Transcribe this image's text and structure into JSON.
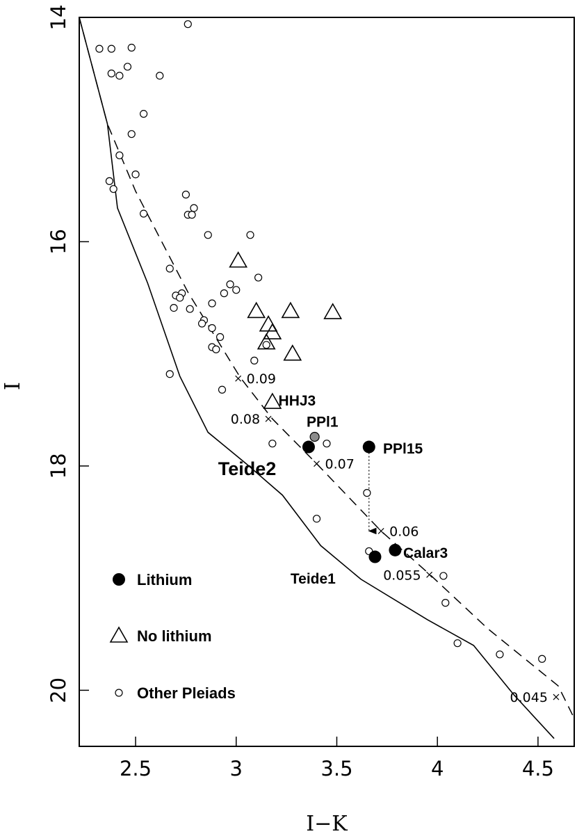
{
  "chart_data": {
    "type": "scatter",
    "xlabel": "I−K",
    "ylabel": "I",
    "xlim": [
      2.22,
      4.68
    ],
    "ylim": [
      20.5,
      14.0
    ],
    "y_inverted": true,
    "grid": false,
    "x_ticks": [
      {
        "value": 2.5,
        "label": "2.5"
      },
      {
        "value": 3.0,
        "label": "3"
      },
      {
        "value": 3.5,
        "label": "3.5"
      },
      {
        "value": 4.0,
        "label": "4"
      },
      {
        "value": 4.5,
        "label": "4.5"
      }
    ],
    "y_ticks": [
      {
        "value": 14,
        "label": "14"
      },
      {
        "value": 16,
        "label": "16"
      },
      {
        "value": 18,
        "label": "18"
      },
      {
        "value": 20,
        "label": "20"
      }
    ],
    "legend": {
      "placement": "bottom-left",
      "entries": [
        {
          "marker": "filled-circle",
          "label": "Lithium"
        },
        {
          "marker": "open-triangle",
          "label": "No lithium"
        },
        {
          "marker": "open-circle",
          "label": "Other Pleiads"
        }
      ]
    },
    "series": [
      {
        "name": "Other Pleiads",
        "marker": "open-circle",
        "points": [
          [
            2.32,
            14.28
          ],
          [
            2.38,
            14.28
          ],
          [
            2.48,
            14.27
          ],
          [
            2.38,
            14.5
          ],
          [
            2.42,
            14.52
          ],
          [
            2.46,
            14.44
          ],
          [
            2.62,
            14.52
          ],
          [
            2.76,
            14.06
          ],
          [
            2.54,
            14.86
          ],
          [
            2.48,
            15.04
          ],
          [
            2.42,
            15.23
          ],
          [
            2.5,
            15.4
          ],
          [
            2.37,
            15.46
          ],
          [
            2.39,
            15.53
          ],
          [
            2.54,
            15.75
          ],
          [
            2.75,
            15.58
          ],
          [
            2.76,
            15.76
          ],
          [
            2.78,
            15.76
          ],
          [
            2.79,
            15.7
          ],
          [
            2.86,
            15.94
          ],
          [
            3.07,
            15.94
          ],
          [
            2.67,
            16.24
          ],
          [
            3.11,
            16.32
          ],
          [
            2.97,
            16.38
          ],
          [
            3.0,
            16.43
          ],
          [
            2.73,
            16.46
          ],
          [
            2.7,
            16.48
          ],
          [
            2.72,
            16.5
          ],
          [
            2.94,
            16.46
          ],
          [
            2.88,
            16.55
          ],
          [
            2.69,
            16.59
          ],
          [
            2.77,
            16.6
          ],
          [
            2.84,
            16.7
          ],
          [
            2.83,
            16.73
          ],
          [
            2.88,
            16.77
          ],
          [
            2.92,
            16.85
          ],
          [
            2.88,
            16.94
          ],
          [
            2.9,
            16.96
          ],
          [
            3.15,
            16.92
          ],
          [
            3.09,
            17.06
          ],
          [
            2.67,
            17.18
          ],
          [
            2.93,
            17.32
          ],
          [
            3.18,
            17.8
          ],
          [
            3.45,
            17.8
          ],
          [
            3.65,
            18.24
          ],
          [
            3.4,
            18.47
          ],
          [
            3.66,
            18.76
          ],
          [
            4.03,
            18.98
          ],
          [
            4.04,
            19.22
          ],
          [
            4.1,
            19.58
          ],
          [
            4.31,
            19.68
          ],
          [
            4.52,
            19.72
          ]
        ]
      },
      {
        "name": "No lithium",
        "marker": "open-triangle",
        "points": [
          [
            3.01,
            16.17
          ],
          [
            3.1,
            16.62
          ],
          [
            3.27,
            16.62
          ],
          [
            3.48,
            16.63
          ],
          [
            3.16,
            16.74
          ],
          [
            3.18,
            16.81
          ],
          [
            3.15,
            16.9
          ],
          [
            3.28,
            17.0
          ],
          [
            3.18,
            17.43
          ]
        ]
      },
      {
        "name": "Lithium",
        "marker": "filled-circle",
        "points": [
          [
            3.36,
            17.83
          ],
          [
            3.66,
            17.83
          ],
          [
            3.69,
            18.81
          ],
          [
            3.79,
            18.75
          ]
        ]
      },
      {
        "name": "PPl1",
        "marker": "gray-circle",
        "points": [
          [
            3.39,
            17.74
          ]
        ]
      }
    ],
    "object_labels": [
      {
        "text": "HHJ3",
        "x": 3.21,
        "y": 17.46,
        "size": "normal"
      },
      {
        "text": "PPl1",
        "x": 3.35,
        "y": 17.65,
        "size": "normal"
      },
      {
        "text": "PPl15",
        "x": 3.73,
        "y": 17.89,
        "size": "normal"
      },
      {
        "text": "Teide2",
        "x": 2.91,
        "y": 18.08,
        "size": "big"
      },
      {
        "text": "Calar3",
        "x": 3.83,
        "y": 18.82,
        "size": "normal"
      },
      {
        "text": "Teide1",
        "x": 3.27,
        "y": 19.05,
        "size": "normal"
      }
    ],
    "isochrone_dashed": {
      "points": [
        [
          2.22,
          14.0
        ],
        [
          2.36,
          14.95
        ],
        [
          2.5,
          15.55
        ],
        [
          2.76,
          16.45
        ],
        [
          3.02,
          17.21
        ],
        [
          3.18,
          17.58
        ],
        [
          3.4,
          17.98
        ],
        [
          3.72,
          18.58
        ],
        [
          3.97,
          18.98
        ],
        [
          4.25,
          19.45
        ],
        [
          4.6,
          19.96
        ],
        [
          4.68,
          20.25
        ]
      ],
      "mass_labels": [
        {
          "text": "0.09",
          "x": 3.01,
          "y": 17.22,
          "anchor": "right",
          "mark_x": 3.01,
          "mark_y": 17.22
        },
        {
          "text": "0.08",
          "x": 3.16,
          "y": 17.58,
          "anchor": "left",
          "mark_x": 3.16,
          "mark_y": 17.58
        },
        {
          "text": "0.07",
          "x": 3.4,
          "y": 17.98,
          "anchor": "right",
          "mark_x": 3.4,
          "mark_y": 17.98
        },
        {
          "text": "0.06",
          "x": 3.72,
          "y": 18.58,
          "anchor": "right",
          "mark_x": 3.72,
          "mark_y": 18.58
        },
        {
          "text": "0.055",
          "x": 3.96,
          "y": 18.97,
          "anchor": "left",
          "mark_x": 3.96,
          "mark_y": 18.97
        },
        {
          "text": "0.045",
          "x": 4.59,
          "y": 20.06,
          "anchor": "left",
          "mark_x": 4.59,
          "mark_y": 20.06
        }
      ]
    },
    "isochrone_solid": {
      "points": [
        [
          2.22,
          14.0
        ],
        [
          2.36,
          14.95
        ],
        [
          2.41,
          15.7
        ],
        [
          2.56,
          16.37
        ],
        [
          2.72,
          17.2
        ],
        [
          2.86,
          17.7
        ],
        [
          3.05,
          17.98
        ],
        [
          3.23,
          18.26
        ],
        [
          3.42,
          18.71
        ],
        [
          3.62,
          19.01
        ],
        [
          3.95,
          19.37
        ],
        [
          4.18,
          19.6
        ],
        [
          4.38,
          20.04
        ],
        [
          4.58,
          20.43
        ]
      ]
    },
    "arrow": {
      "x": 3.66,
      "y_start": 17.88,
      "y_end": 18.58,
      "style": "dotted"
    }
  }
}
